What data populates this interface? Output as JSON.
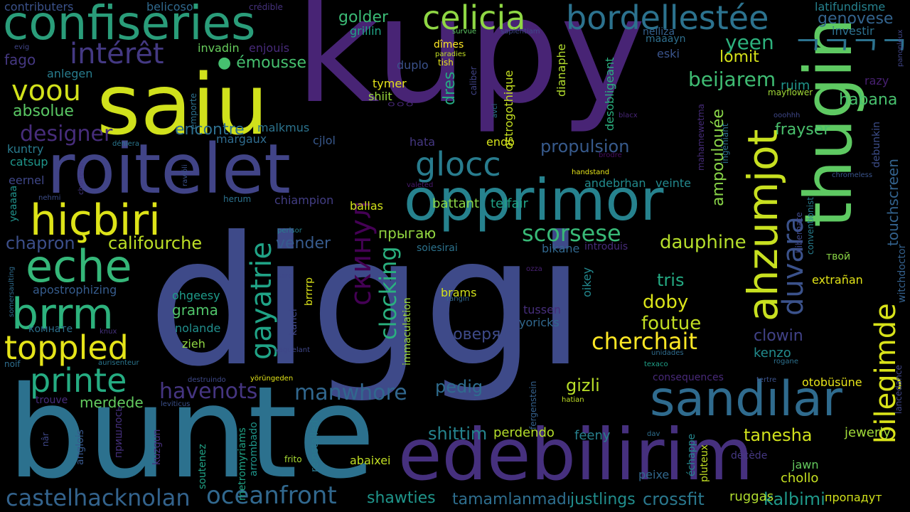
{
  "words": [
    {
      "text": "diggi",
      "color": "#3e4a89"
    },
    {
      "text": "kupy",
      "color": "#482475"
    },
    {
      "text": "bunte",
      "color": "#2c718e"
    },
    {
      "text": "roitelet",
      "color": "#414487"
    },
    {
      "text": "saiu",
      "color": "#d0e11c"
    },
    {
      "text": "edebilirim",
      "color": "#46307e"
    },
    {
      "text": "thugin",
      "color": "#5ec962"
    },
    {
      "text": "opprimor",
      "color": "#26828e"
    },
    {
      "text": "confiseries",
      "color": "#2a9d7a"
    },
    {
      "text": "sandılar",
      "color": "#2f6b8e"
    },
    {
      "text": "celicia",
      "color": "#8fd744"
    },
    {
      "text": "bordellestée",
      "color": "#2c728e"
    },
    {
      "text": "hiçbiri",
      "color": "#dde318"
    },
    {
      "text": "eche",
      "color": "#35b779"
    },
    {
      "text": "brrm",
      "color": "#2db27d"
    },
    {
      "text": "toppled",
      "color": "#e5e419"
    },
    {
      "text": "printe",
      "color": "#25ac82"
    },
    {
      "text": "voou",
      "color": "#d2e21b"
    },
    {
      "text": "ahzumjot",
      "color": "#c8e020"
    },
    {
      "text": "bilegimde",
      "color": "#d8e219"
    },
    {
      "text": "intérêt",
      "color": "#443983"
    },
    {
      "text": "glocc",
      "color": "#287c8e"
    },
    {
      "text": "gayatrie",
      "color": "#20a386"
    },
    {
      "text": "duvara",
      "color": "#3b528b"
    },
    {
      "text": "castelhacknolan",
      "color": "#33638d"
    },
    {
      "text": "oceanfront",
      "color": "#31688e"
    },
    {
      "text": "scorsese",
      "color": "#38b977"
    },
    {
      "text": "cherchait",
      "color": "#fde725"
    },
    {
      "text": "ambient-kanji",
      "color": "#2c728e"
    },
    {
      "text": "designer",
      "color": "#472d7b"
    },
    {
      "text": "havenots",
      "color": "#453581"
    },
    {
      "text": "manwhore",
      "color": "#31678e"
    },
    {
      "text": "скинул",
      "color": "#440154"
    },
    {
      "text": "clocking",
      "color": "#2ab07f"
    },
    {
      "text": "beijarem",
      "color": "#3fbc73"
    },
    {
      "text": "dauphine",
      "color": "#b5de2b"
    },
    {
      "text": "foutue",
      "color": "#c2df23"
    },
    {
      "text": "chapron",
      "color": "#3c4f8a"
    },
    {
      "text": "califourche",
      "color": "#bddf26"
    },
    {
      "text": "absolue",
      "color": "#5ac864"
    },
    {
      "text": "encontre",
      "color": "#2e6f8e"
    },
    {
      "text": "propulsion",
      "color": "#375a8c"
    },
    {
      "text": "emousse",
      "color": "#46c06f"
    },
    {
      "text": "golder",
      "color": "#3bbb75"
    },
    {
      "text": "genovese",
      "color": "#33638d"
    },
    {
      "text": "latifundisme",
      "color": "#26818e"
    },
    {
      "text": "investir",
      "color": "#2d708e"
    },
    {
      "text": "yeen",
      "color": "#2db27d"
    },
    {
      "text": "lomit",
      "color": "#d5e21a"
    },
    {
      "text": "habana",
      "color": "#48c16e"
    },
    {
      "text": "ruim",
      "color": "#1f958b"
    },
    {
      "text": "razy",
      "color": "#482071"
    },
    {
      "text": "frayser",
      "color": "#4ac16d"
    },
    {
      "text": "touchscreen",
      "color": "#33628d"
    },
    {
      "text": "debunkin",
      "color": "#3d4e8a"
    },
    {
      "text": "tris",
      "color": "#24aa83"
    },
    {
      "text": "doby",
      "color": "#dae319"
    },
    {
      "text": "gizli",
      "color": "#b8de29"
    },
    {
      "text": "tanesha",
      "color": "#d0e11c"
    },
    {
      "text": "jewerly",
      "color": "#a0da39"
    },
    {
      "text": "pedig",
      "color": "#2f6c8e"
    },
    {
      "text": "vender",
      "color": "#375b8d"
    },
    {
      "text": "прыгаю",
      "color": "#93d741"
    },
    {
      "text": "ampoulouée",
      "color": "#89d548"
    },
    {
      "text": "clowin",
      "color": "#414287"
    },
    {
      "text": "kenzo",
      "color": "#228b8d"
    },
    {
      "text": "shittim",
      "color": "#25838e"
    },
    {
      "text": "perdendo",
      "color": "#b5de2b"
    },
    {
      "text": "feeny",
      "color": "#27808e"
    },
    {
      "text": "shawties",
      "color": "#1f958b"
    },
    {
      "text": "tamamlanmadı",
      "color": "#2e6e8e"
    },
    {
      "text": "justlings",
      "color": "#218e8d"
    },
    {
      "text": "crossfit",
      "color": "#2a788e"
    },
    {
      "text": "kalbimi",
      "color": "#1f998a"
    },
    {
      "text": "ruggas",
      "color": "#b0dd2f"
    },
    {
      "text": "пропадут",
      "color": "#d2e21b"
    },
    {
      "text": "chollo",
      "color": "#c5e021"
    },
    {
      "text": "jawn",
      "color": "#65cb5e"
    },
    {
      "text": "merdede",
      "color": "#63cb5f"
    },
    {
      "text": "grama",
      "color": "#50c46a"
    },
    {
      "text": "nolande",
      "color": "#218f8d"
    },
    {
      "text": "zieh",
      "color": "#90d743"
    },
    {
      "text": "ohgeesy",
      "color": "#1e9b8a"
    },
    {
      "text": "brams",
      "color": "#d2e21b"
    },
    {
      "text": "tussen",
      "color": "#472f7d"
    },
    {
      "text": "yoricks",
      "color": "#31688e"
    },
    {
      "text": "доверять",
      "color": "#3e4a89"
    },
    {
      "text": "oikey",
      "color": "#23888e"
    },
    {
      "text": "fago",
      "color": "#453882"
    },
    {
      "text": "anlegen",
      "color": "#287d8e"
    },
    {
      "text": "kuntry",
      "color": "#297b8e"
    },
    {
      "text": "catsup",
      "color": "#1f968b"
    },
    {
      "text": "eernel",
      "color": "#3f4788"
    },
    {
      "text": "margaux",
      "color": "#2f6b8e"
    },
    {
      "text": "malkmus",
      "color": "#2c738e"
    },
    {
      "text": "cjlol",
      "color": "#38588c"
    },
    {
      "text": "invadin",
      "color": "#67cc5c"
    },
    {
      "text": "enjouis",
      "color": "#472a7a"
    },
    {
      "text": "belicoso",
      "color": "#30698e"
    },
    {
      "text": "contributers",
      "color": "#3b528b"
    },
    {
      "text": "crédible",
      "color": "#46327e"
    },
    {
      "text": "evig",
      "color": "#404588"
    },
    {
      "text": "grillin",
      "color": "#20a386"
    },
    {
      "text": "survue",
      "color": "#5cc863"
    },
    {
      "text": "sapientiam",
      "color": "#3e4989"
    },
    {
      "text": "dîmes",
      "color": "#fde725"
    },
    {
      "text": "paradies",
      "color": "#c2df23"
    },
    {
      "text": "tish",
      "color": "#e5e419"
    },
    {
      "text": "duplo",
      "color": "#3b528b"
    },
    {
      "text": "tymer",
      "color": "#e5e419"
    },
    {
      "text": "shiit",
      "color": "#9bd93c"
    },
    {
      "text": "hangul-a",
      "color": "#482878"
    },
    {
      "text": "caliber",
      "color": "#414487"
    },
    {
      "text": "avci",
      "color": "#2a768e"
    },
    {
      "text": "dianaphe",
      "color": "#b2dd2d"
    },
    {
      "text": "ostrogothique",
      "color": "#c5e021"
    },
    {
      "text": "dres",
      "color": "#25ab82"
    },
    {
      "text": "endo",
      "color": "#d5e21a"
    },
    {
      "text": "hata",
      "color": "#453882"
    },
    {
      "text": "desobligeant",
      "color": "#2ab07f"
    },
    {
      "text": "blacx",
      "color": "#482677"
    },
    {
      "text": "mahamewetma",
      "color": "#472c7a"
    },
    {
      "text": "ingéniant",
      "color": "#2d708e"
    },
    {
      "text": "brodre",
      "color": "#470d60"
    },
    {
      "text": "handstand",
      "color": "#e5e419"
    },
    {
      "text": "battant",
      "color": "#8bd646"
    },
    {
      "text": "telfair",
      "color": "#1fa287"
    },
    {
      "text": "andebrhan",
      "color": "#228b8d"
    },
    {
      "text": "veinte",
      "color": "#23898e"
    },
    {
      "text": "valeted",
      "color": "#481a6c"
    },
    {
      "text": "maaayn",
      "color": "#2e6f8e"
    },
    {
      "text": "eski",
      "color": "#3a548c"
    },
    {
      "text": "nelliza",
      "color": "#34608d"
    },
    {
      "text": "mayflower",
      "color": "#a2da37"
    },
    {
      "text": "panopleux",
      "color": "#404588"
    },
    {
      "text": "ooohhh",
      "color": "#3f4889"
    },
    {
      "text": "chromeless",
      "color": "#3a548c"
    },
    {
      "text": "déniera",
      "color": "#2a768e"
    },
    {
      "text": "yeaaaa",
      "color": "#20928c"
    },
    {
      "text": "nehmi",
      "color": "#3d4e8a"
    },
    {
      "text": "charterin",
      "color": "#453781"
    },
    {
      "text": "raviöli",
      "color": "#3b518b"
    },
    {
      "text": "herum",
      "color": "#2c728e"
    },
    {
      "text": "chiampion",
      "color": "#433e85"
    },
    {
      "text": "ballas",
      "color": "#d2e21b"
    },
    {
      "text": "perlsor",
      "color": "#27808e"
    },
    {
      "text": "soiesirai",
      "color": "#2c738e"
    },
    {
      "text": "bikane",
      "color": "#31678e"
    },
    {
      "text": "introduis",
      "color": "#472c7a"
    },
    {
      "text": "hibernate",
      "color": "#3f4889"
    },
    {
      "text": "conventionist",
      "color": "#287d8e"
    },
    {
      "text": "witchdoctor",
      "color": "#34618d"
    },
    {
      "text": "ozza",
      "color": "#482173"
    },
    {
      "text": "sare",
      "color": "#3f4889"
    },
    {
      "text": "somersaulting",
      "color": "#2f6c8e"
    },
    {
      "text": "apostrophizing",
      "color": "#365c8d"
    },
    {
      "text": "brrrrp",
      "color": "#dae319"
    },
    {
      "text": "rangin",
      "color": "#31668e"
    },
    {
      "text": "immaculation",
      "color": "#9dd93b"
    },
    {
      "text": "kanel",
      "color": "#3f4788"
    },
    {
      "text": "extrañan",
      "color": "#e2e418"
    },
    {
      "text": "твой",
      "color": "#8bd646"
    },
    {
      "text": "комнате",
      "color": "#2d708e"
    },
    {
      "text": "knux",
      "color": "#46337f"
    },
    {
      "text": "vaguelant",
      "color": "#3f4788"
    },
    {
      "text": "noif",
      "color": "#2e6e8e"
    },
    {
      "text": "aurisenteur",
      "color": "#2a768e"
    },
    {
      "text": "unidades",
      "color": "#2f6c8e"
    },
    {
      "text": "texaco",
      "color": "#1fa088"
    },
    {
      "text": "fergenstein",
      "color": "#34618d"
    },
    {
      "text": "rogane",
      "color": "#2d718e"
    },
    {
      "text": "lancedance",
      "color": "#404688"
    },
    {
      "text": "consequences",
      "color": "#482979"
    },
    {
      "text": "tertre",
      "color": "#3b528b"
    },
    {
      "text": "otobüsüne",
      "color": "#e7e419"
    },
    {
      "text": "destruindo",
      "color": "#3e4989"
    },
    {
      "text": "yörüngeden",
      "color": "#e2e418"
    },
    {
      "text": "trouve",
      "color": "#472e7c"
    },
    {
      "text": "leviticus",
      "color": "#3b518b"
    },
    {
      "text": "hatian",
      "color": "#c0df25"
    },
    {
      "text": "décède",
      "color": "#453882"
    },
    {
      "text": "échappe",
      "color": "#24878e"
    },
    {
      "text": "pluteux",
      "color": "#c2df23"
    },
    {
      "text": "dav",
      "color": "#2e6e8e"
    },
    {
      "text": "nâr",
      "color": "#3f4889"
    },
    {
      "text": "пришлось",
      "color": "#46307e"
    },
    {
      "text": "anglois",
      "color": "#38588c"
    },
    {
      "text": "kuzgun",
      "color": "#472f7d"
    },
    {
      "text": "soutenez",
      "color": "#20a386"
    },
    {
      "text": "metromyriams",
      "color": "#20a386"
    },
    {
      "text": "arrombado",
      "color": "#1f958b"
    },
    {
      "text": "reinstalled",
      "color": "#2a788e"
    },
    {
      "text": "frito",
      "color": "#a8db34"
    },
    {
      "text": "abaixei",
      "color": "#c2df23"
    },
    {
      "text": "peixe",
      "color": "#31688e"
    },
    {
      "text": "emporte",
      "color": "#2d718e"
    }
  ]
}
